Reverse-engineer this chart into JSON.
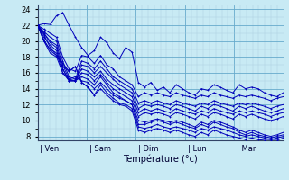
{
  "xlabel": "Température (°c)",
  "bg_color": "#c8eaf4",
  "line_color": "#0000bb",
  "grid_major_color": "#66aacc",
  "grid_minor_color": "#aaccdd",
  "ylim": [
    7.5,
    24.5
  ],
  "yticks": [
    8,
    10,
    12,
    14,
    16,
    18,
    20,
    22,
    24
  ],
  "day_labels": [
    "Ven",
    "Sam",
    "Dim",
    "Lun",
    "Mar"
  ],
  "n_days": 5,
  "points_per_day": 8,
  "forecasts": [
    [
      22.0,
      22.2,
      22.1,
      23.2,
      23.6,
      22.0,
      20.5,
      19.2,
      18.2,
      18.8,
      20.5,
      19.8,
      18.5,
      17.8,
      19.2,
      18.6,
      14.8,
      14.2,
      14.8,
      13.8,
      14.2,
      13.5,
      14.5,
      14.0,
      13.5,
      13.2,
      14.0,
      13.8,
      14.5,
      14.2,
      13.8,
      13.5,
      14.5,
      14.0,
      14.2,
      14.0,
      13.5,
      13.2,
      13.0,
      13.5
    ],
    [
      22.0,
      21.5,
      21.0,
      20.5,
      18.0,
      16.5,
      16.2,
      18.2,
      18.0,
      17.2,
      18.2,
      17.0,
      16.5,
      15.5,
      15.0,
      14.5,
      13.0,
      13.5,
      13.2,
      13.5,
      13.2,
      13.0,
      13.5,
      13.2,
      13.0,
      12.8,
      13.2,
      13.0,
      13.5,
      13.2,
      13.0,
      12.8,
      13.2,
      13.0,
      13.2,
      13.0,
      12.8,
      12.5,
      12.8,
      13.0
    ],
    [
      22.0,
      21.2,
      20.5,
      20.0,
      17.5,
      15.5,
      15.2,
      17.5,
      17.2,
      16.5,
      17.5,
      16.5,
      15.5,
      15.0,
      14.5,
      14.0,
      12.2,
      12.5,
      12.2,
      12.5,
      12.2,
      12.0,
      12.5,
      12.2,
      12.0,
      11.8,
      12.2,
      12.0,
      12.5,
      12.2,
      12.0,
      11.8,
      12.2,
      12.0,
      12.2,
      12.0,
      11.8,
      11.5,
      11.8,
      12.0
    ],
    [
      22.0,
      21.0,
      20.0,
      19.5,
      17.0,
      15.2,
      15.0,
      17.0,
      16.8,
      16.0,
      16.8,
      16.0,
      15.2,
      14.5,
      14.0,
      13.5,
      11.5,
      12.0,
      11.8,
      12.0,
      11.8,
      11.5,
      12.0,
      11.8,
      11.5,
      11.2,
      11.8,
      11.5,
      12.0,
      11.8,
      11.5,
      11.2,
      11.8,
      11.5,
      11.8,
      11.5,
      11.2,
      11.0,
      11.2,
      11.5
    ],
    [
      22.0,
      21.0,
      19.8,
      19.2,
      16.5,
      15.0,
      15.0,
      16.5,
      16.2,
      15.5,
      16.2,
      15.2,
      14.5,
      14.0,
      13.5,
      13.0,
      11.0,
      11.5,
      11.2,
      11.5,
      11.2,
      11.0,
      11.5,
      11.2,
      11.0,
      10.8,
      11.2,
      11.0,
      11.5,
      11.2,
      11.0,
      10.8,
      11.2,
      11.0,
      11.2,
      11.0,
      10.8,
      10.5,
      10.8,
      11.0
    ],
    [
      22.0,
      20.5,
      19.5,
      18.8,
      16.5,
      15.0,
      15.0,
      16.0,
      15.8,
      15.0,
      15.8,
      14.8,
      14.0,
      13.5,
      13.0,
      12.5,
      10.5,
      11.0,
      10.8,
      11.0,
      10.8,
      10.5,
      11.0,
      10.8,
      10.5,
      10.2,
      10.8,
      10.5,
      11.0,
      10.8,
      10.5,
      10.2,
      10.8,
      10.5,
      10.8,
      10.5,
      10.2,
      10.0,
      10.2,
      10.5
    ],
    [
      22.0,
      20.0,
      19.0,
      18.5,
      16.0,
      15.0,
      15.0,
      15.5,
      15.2,
      14.5,
      15.5,
      14.5,
      13.5,
      13.0,
      12.5,
      12.0,
      10.0,
      9.8,
      10.0,
      10.2,
      10.0,
      9.8,
      10.0,
      9.8,
      9.5,
      9.2,
      9.8,
      9.5,
      10.0,
      9.8,
      9.5,
      9.2,
      8.8,
      8.5,
      8.8,
      8.5,
      8.2,
      8.0,
      8.2,
      8.5
    ],
    [
      22.0,
      20.0,
      18.5,
      18.0,
      16.0,
      15.2,
      15.5,
      15.0,
      14.8,
      14.0,
      14.8,
      14.0,
      13.2,
      12.8,
      12.5,
      12.0,
      9.5,
      9.5,
      9.8,
      10.0,
      9.8,
      9.5,
      9.8,
      9.5,
      9.2,
      9.0,
      9.5,
      9.2,
      9.8,
      9.5,
      9.2,
      9.0,
      8.5,
      8.2,
      8.5,
      8.2,
      8.0,
      7.8,
      8.0,
      8.2
    ],
    [
      22.0,
      20.2,
      18.8,
      18.2,
      16.8,
      16.2,
      16.8,
      14.8,
      14.2,
      13.2,
      14.5,
      13.5,
      12.8,
      12.2,
      12.0,
      11.5,
      9.2,
      9.0,
      9.2,
      9.5,
      9.2,
      9.0,
      9.2,
      9.0,
      8.8,
      8.5,
      9.0,
      8.8,
      9.2,
      9.0,
      8.8,
      8.5,
      8.2,
      8.0,
      8.2,
      8.0,
      7.8,
      7.6,
      7.8,
      8.0
    ],
    [
      22.0,
      20.8,
      19.2,
      18.2,
      17.2,
      16.2,
      16.8,
      14.8,
      14.2,
      13.2,
      14.0,
      13.2,
      12.5,
      12.0,
      11.8,
      11.2,
      8.8,
      8.5,
      8.8,
      9.0,
      8.8,
      8.5,
      8.8,
      8.5,
      8.2,
      8.0,
      8.5,
      8.2,
      8.8,
      8.5,
      8.2,
      8.0,
      7.8,
      7.6,
      7.8,
      7.6,
      7.5,
      7.5,
      7.5,
      7.8
    ]
  ]
}
